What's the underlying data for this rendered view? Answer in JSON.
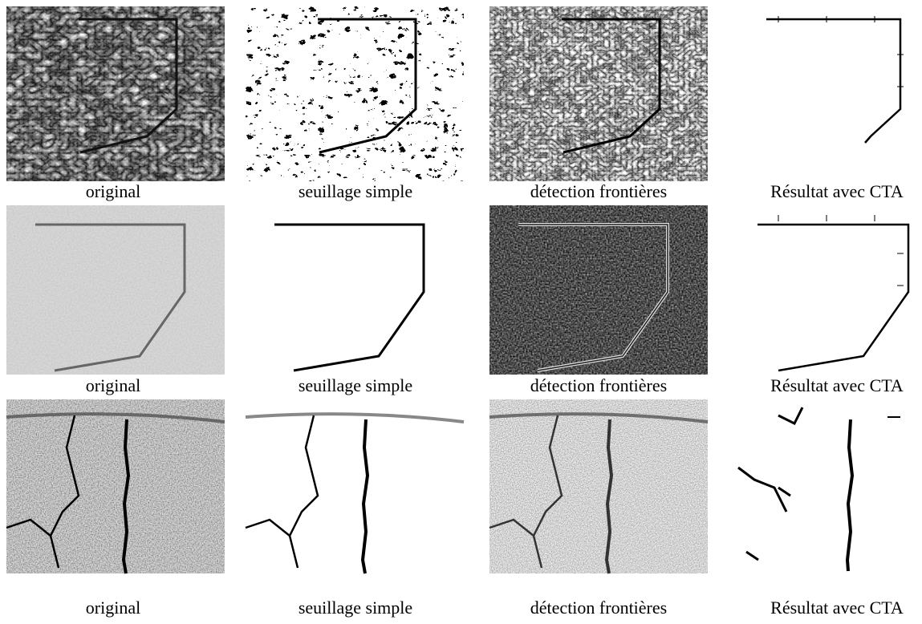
{
  "figure": {
    "rows": [
      {
        "captions": [
          "original",
          "seuillage simple",
          "détection frontières",
          "Résultat avec CTA"
        ]
      },
      {
        "captions": [
          "original",
          "seuillage simple",
          "détection frontières",
          "Résultat avec CTA"
        ]
      },
      {
        "captions": [
          "original",
          "seuillage simple",
          "détection frontières",
          "Résultat avec CTA"
        ]
      }
    ]
  }
}
